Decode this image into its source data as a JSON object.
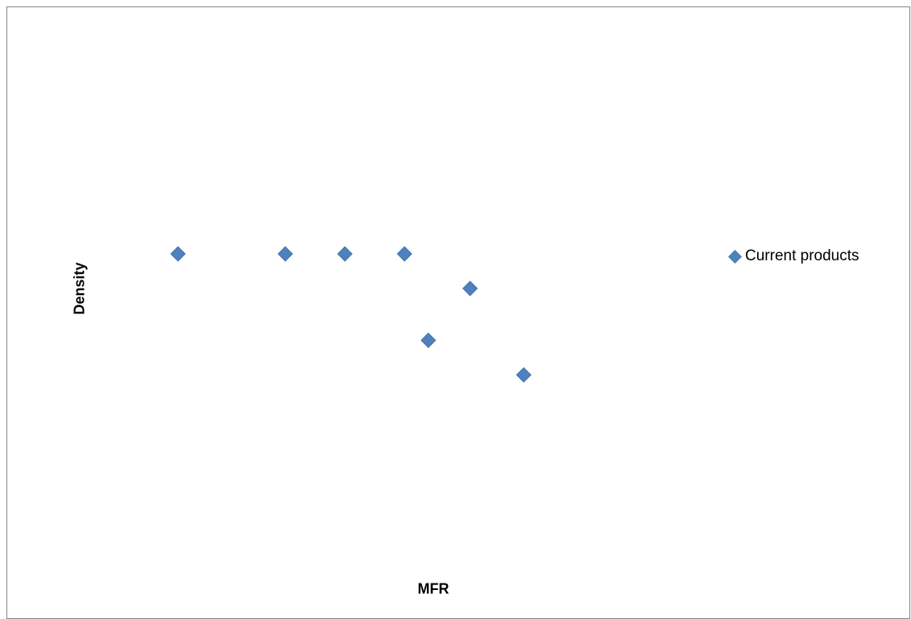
{
  "chart_data": {
    "type": "scatter",
    "title": "",
    "xlabel": "MFR",
    "ylabel": "Density",
    "axes_visible": false,
    "grid": false,
    "legend_position": "right",
    "series": [
      {
        "name": "Current products",
        "color": "#4F81BD",
        "marker": "diamond",
        "points": [
          {
            "x": 1.0,
            "y": 7.0
          },
          {
            "x": 2.8,
            "y": 7.0
          },
          {
            "x": 3.8,
            "y": 7.0
          },
          {
            "x": 4.8,
            "y": 7.0
          },
          {
            "x": 5.9,
            "y": 6.4
          },
          {
            "x": 5.2,
            "y": 5.5
          },
          {
            "x": 6.8,
            "y": 4.9
          }
        ]
      }
    ]
  }
}
